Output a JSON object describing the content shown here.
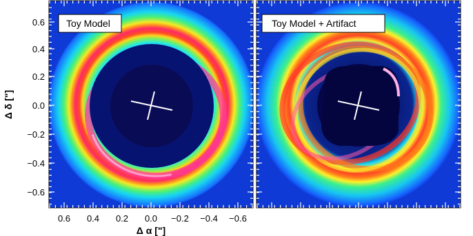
{
  "panels": [
    {
      "label": "Toy Model"
    },
    {
      "label": "Toy Model + Artifact"
    }
  ],
  "axes": {
    "x_title": "Δ α [\"]",
    "y_title": "Δ δ [\"]",
    "x_ticks": [
      "0.6",
      "0.4",
      "0.2",
      "0.0",
      "−0.2",
      "−0.4",
      "−0.6"
    ],
    "y_ticks": [
      "0.6",
      "0.4",
      "0.2",
      "0.0",
      "−0.2",
      "−0.4",
      "−0.6"
    ]
  },
  "colors": {
    "background_deep": "#0a0f6e",
    "halo_blue": "#1f6cff",
    "cyan": "#18e6f0",
    "green": "#39f07a",
    "yellow": "#f4ea24",
    "orange": "#ff8a12",
    "red": "#ff2430",
    "magenta": "#ff4fbf",
    "white_hot": "#ffffff",
    "mask_dark": "#020238",
    "crosshair": "#ffffff"
  }
}
